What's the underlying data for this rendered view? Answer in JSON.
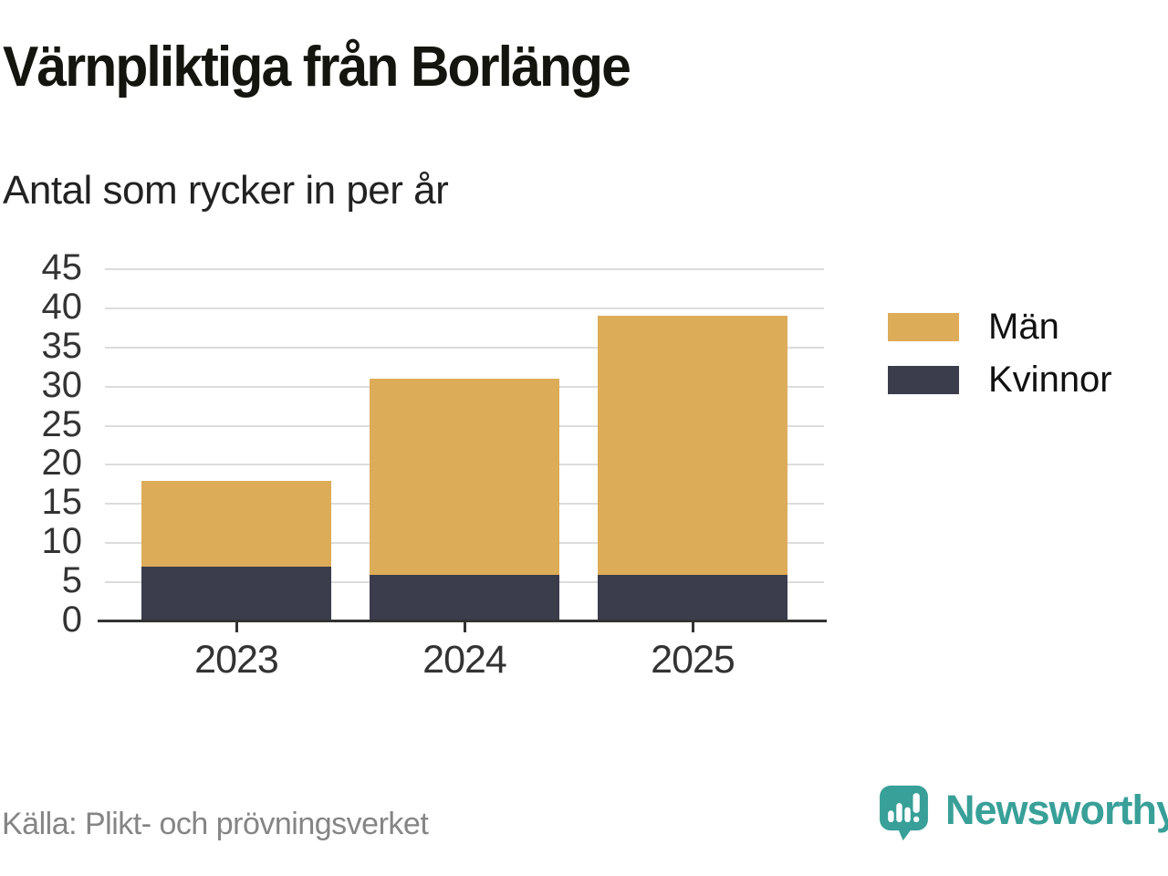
{
  "title": "Värnpliktiga från Borlänge",
  "subtitle": "Antal som rycker in per år",
  "source": "Källa: Plikt- och prövningsverket",
  "brand": {
    "name": "Newsworthy",
    "icon": "newsworthy-speech-bubble-chart-icon",
    "color": "#38a098"
  },
  "legend": {
    "position": "right",
    "items": [
      {
        "label": "Män",
        "color": "#dcac58"
      },
      {
        "label": "Kvinnor",
        "color": "#3b3c4c"
      }
    ]
  },
  "colors": {
    "men": "#dcac58",
    "women": "#3b3c4c",
    "gridline": "#dcdcdc",
    "axis": "#333333",
    "brand_teal": "#38a098"
  },
  "chart_data": {
    "type": "bar",
    "stacked": true,
    "title": "Värnpliktiga från Borlänge",
    "subtitle": "Antal som rycker in per år",
    "categories": [
      "2023",
      "2024",
      "2025"
    ],
    "series": [
      {
        "name": "Kvinnor",
        "color": "#3b3c4c",
        "values": [
          7,
          6,
          6
        ]
      },
      {
        "name": "Män",
        "color": "#dcac58",
        "values": [
          11,
          25,
          33
        ]
      }
    ],
    "totals": [
      18,
      31,
      39
    ],
    "xlabel": "",
    "ylabel": "",
    "ylim": [
      0,
      45
    ],
    "ytick_step": 5,
    "yticks": [
      0,
      5,
      10,
      15,
      20,
      25,
      30,
      35,
      40,
      45
    ],
    "grid": true,
    "legend_position": "right"
  }
}
